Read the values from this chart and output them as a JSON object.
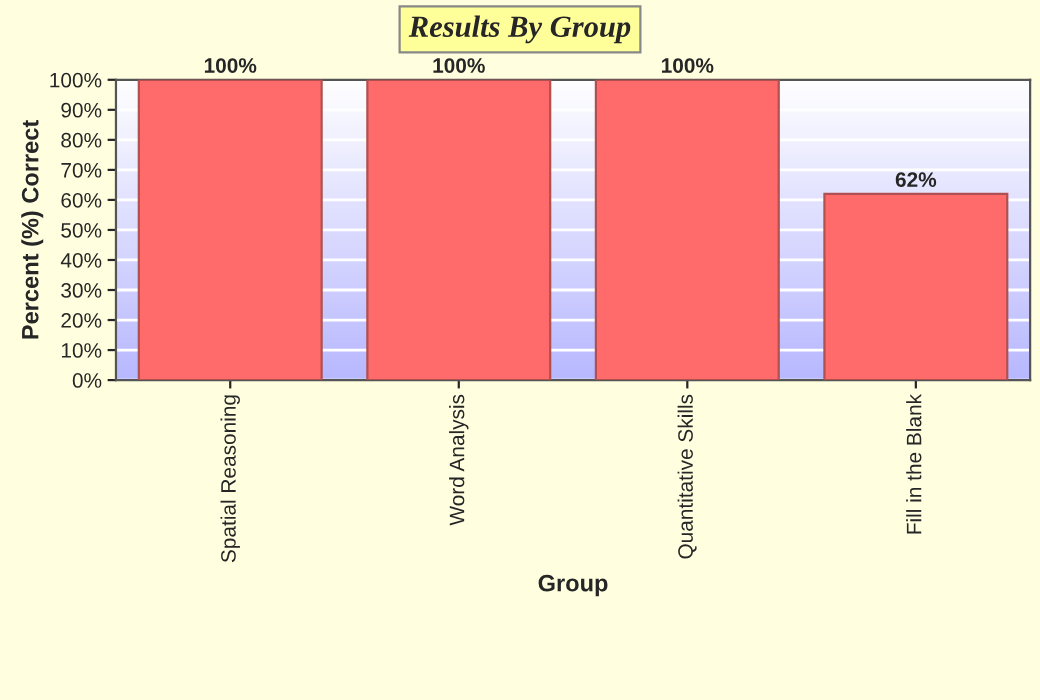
{
  "chart_data": {
    "type": "bar",
    "title": "Results By Group",
    "xlabel": "Group",
    "ylabel": "Percent (%) Correct",
    "categories": [
      "Spatial Reasoning",
      "Word Analysis",
      "Quantitative Skills",
      "Fill in the Blank"
    ],
    "values": [
      100,
      100,
      100,
      62
    ],
    "color": "#ff6b6b",
    "value_labels": [
      "100%",
      "100%",
      "100%",
      "62%"
    ],
    "ylim": [
      0,
      100
    ],
    "yticks": [
      {
        "value": 0,
        "label": "0%"
      },
      {
        "value": 10,
        "label": "10%"
      },
      {
        "value": 20,
        "label": "20%"
      },
      {
        "value": 30,
        "label": "30%"
      },
      {
        "value": 40,
        "label": "40%"
      },
      {
        "value": 50,
        "label": "50%"
      },
      {
        "value": 60,
        "label": "60%"
      },
      {
        "value": 70,
        "label": "70%"
      },
      {
        "value": 80,
        "label": "80%"
      },
      {
        "value": 90,
        "label": "90%"
      },
      {
        "value": 100,
        "label": "100%"
      }
    ],
    "grid": "y"
  }
}
